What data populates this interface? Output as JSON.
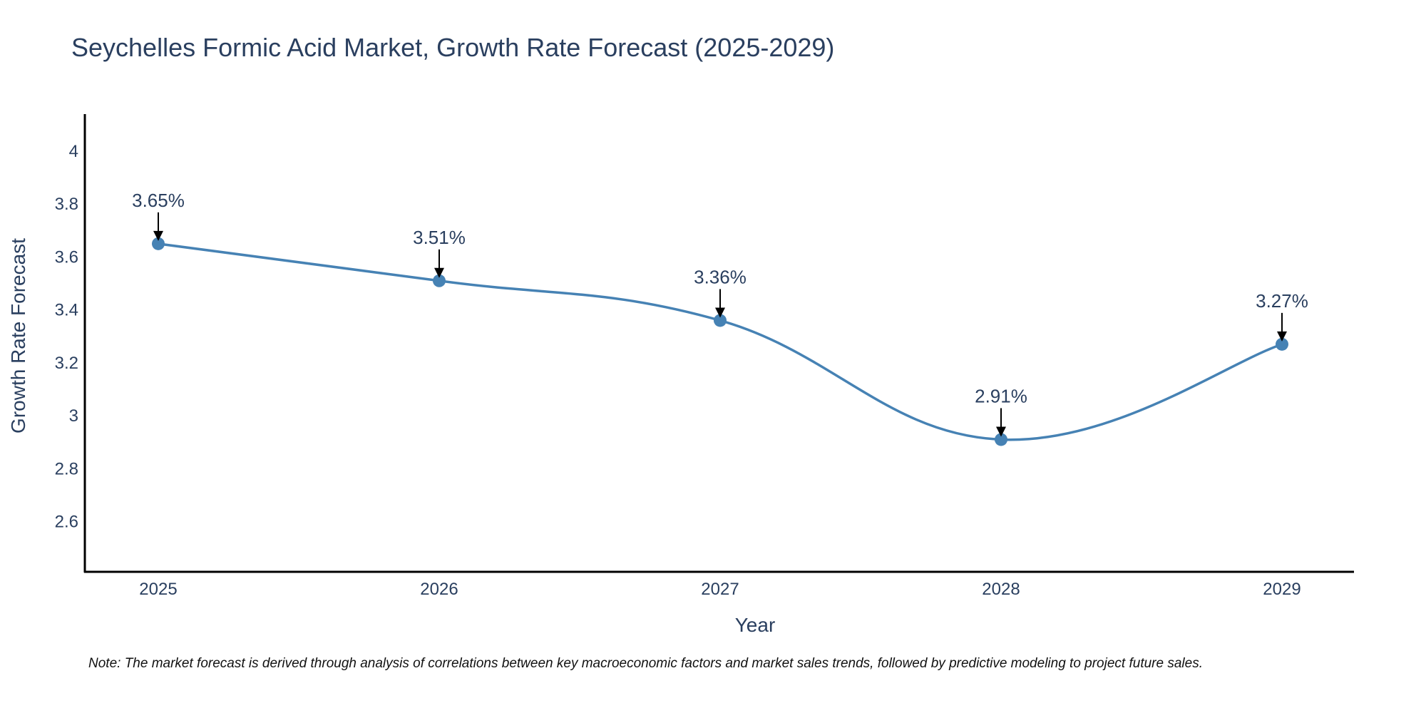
{
  "chart_data": {
    "type": "line",
    "title": "Seychelles Formic Acid Market, Growth Rate Forecast (2025-2029)",
    "xlabel": "Year",
    "ylabel": "Growth Rate Forecast",
    "categories": [
      "2025",
      "2026",
      "2027",
      "2028",
      "2029"
    ],
    "values": [
      3.65,
      3.51,
      3.36,
      2.91,
      3.27
    ],
    "annotations": [
      "3.65%",
      "3.51%",
      "3.36%",
      "2.91%",
      "3.27%"
    ],
    "ylim": [
      2.41,
      4.14
    ],
    "yticks": [
      2.6,
      2.8,
      3,
      3.2,
      3.4,
      3.6,
      3.8,
      4
    ],
    "ytick_labels": [
      "2.6",
      "2.8",
      "3",
      "3.2",
      "3.4",
      "3.6",
      "3.8",
      "4"
    ],
    "grid": false,
    "line_color": "#4682b4",
    "marker_color": "#4682b4",
    "arrow_color": "#000000",
    "note": "Note: The market forecast is derived through analysis of correlations between key macroeconomic factors and market sales trends, followed by predictive modeling to project future sales."
  }
}
